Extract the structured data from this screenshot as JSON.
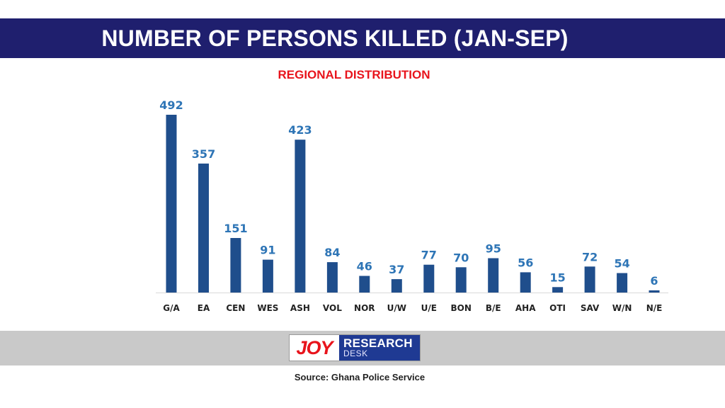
{
  "header": {
    "title": "NUMBER OF PERSONS KILLED (JAN-SEP)"
  },
  "chart_data": {
    "type": "bar",
    "title": "NUMBER OF PERSONS KILLED (JAN-SEP)",
    "subtitle": "REGIONAL DISTRIBUTION",
    "categories": [
      "G/A",
      "EA",
      "CEN",
      "WES",
      "ASH",
      "VOL",
      "NOR",
      "U/W",
      "U/E",
      "BON",
      "B/E",
      "AHA",
      "OTI",
      "SAV",
      "W/N",
      "N/E"
    ],
    "values": [
      492,
      357,
      151,
      91,
      423,
      84,
      46,
      37,
      77,
      70,
      95,
      56,
      15,
      72,
      54,
      6
    ],
    "ylim": [
      0,
      492
    ],
    "xlabel": "",
    "ylabel": "",
    "grid": false,
    "bar_color": "#1f4e8c",
    "label_color": "#2e75b6"
  },
  "footer": {
    "logo": {
      "joy": "JOY",
      "research": "RESEARCH",
      "desk": "DESK"
    },
    "source": "Source: Ghana Police Service"
  },
  "colors": {
    "title_bar": "#1f1f6e",
    "subtitle": "#e8141c",
    "footer_band": "#c9c9c9",
    "logo_blue": "#1f3a93",
    "logo_red": "#e8141c"
  }
}
